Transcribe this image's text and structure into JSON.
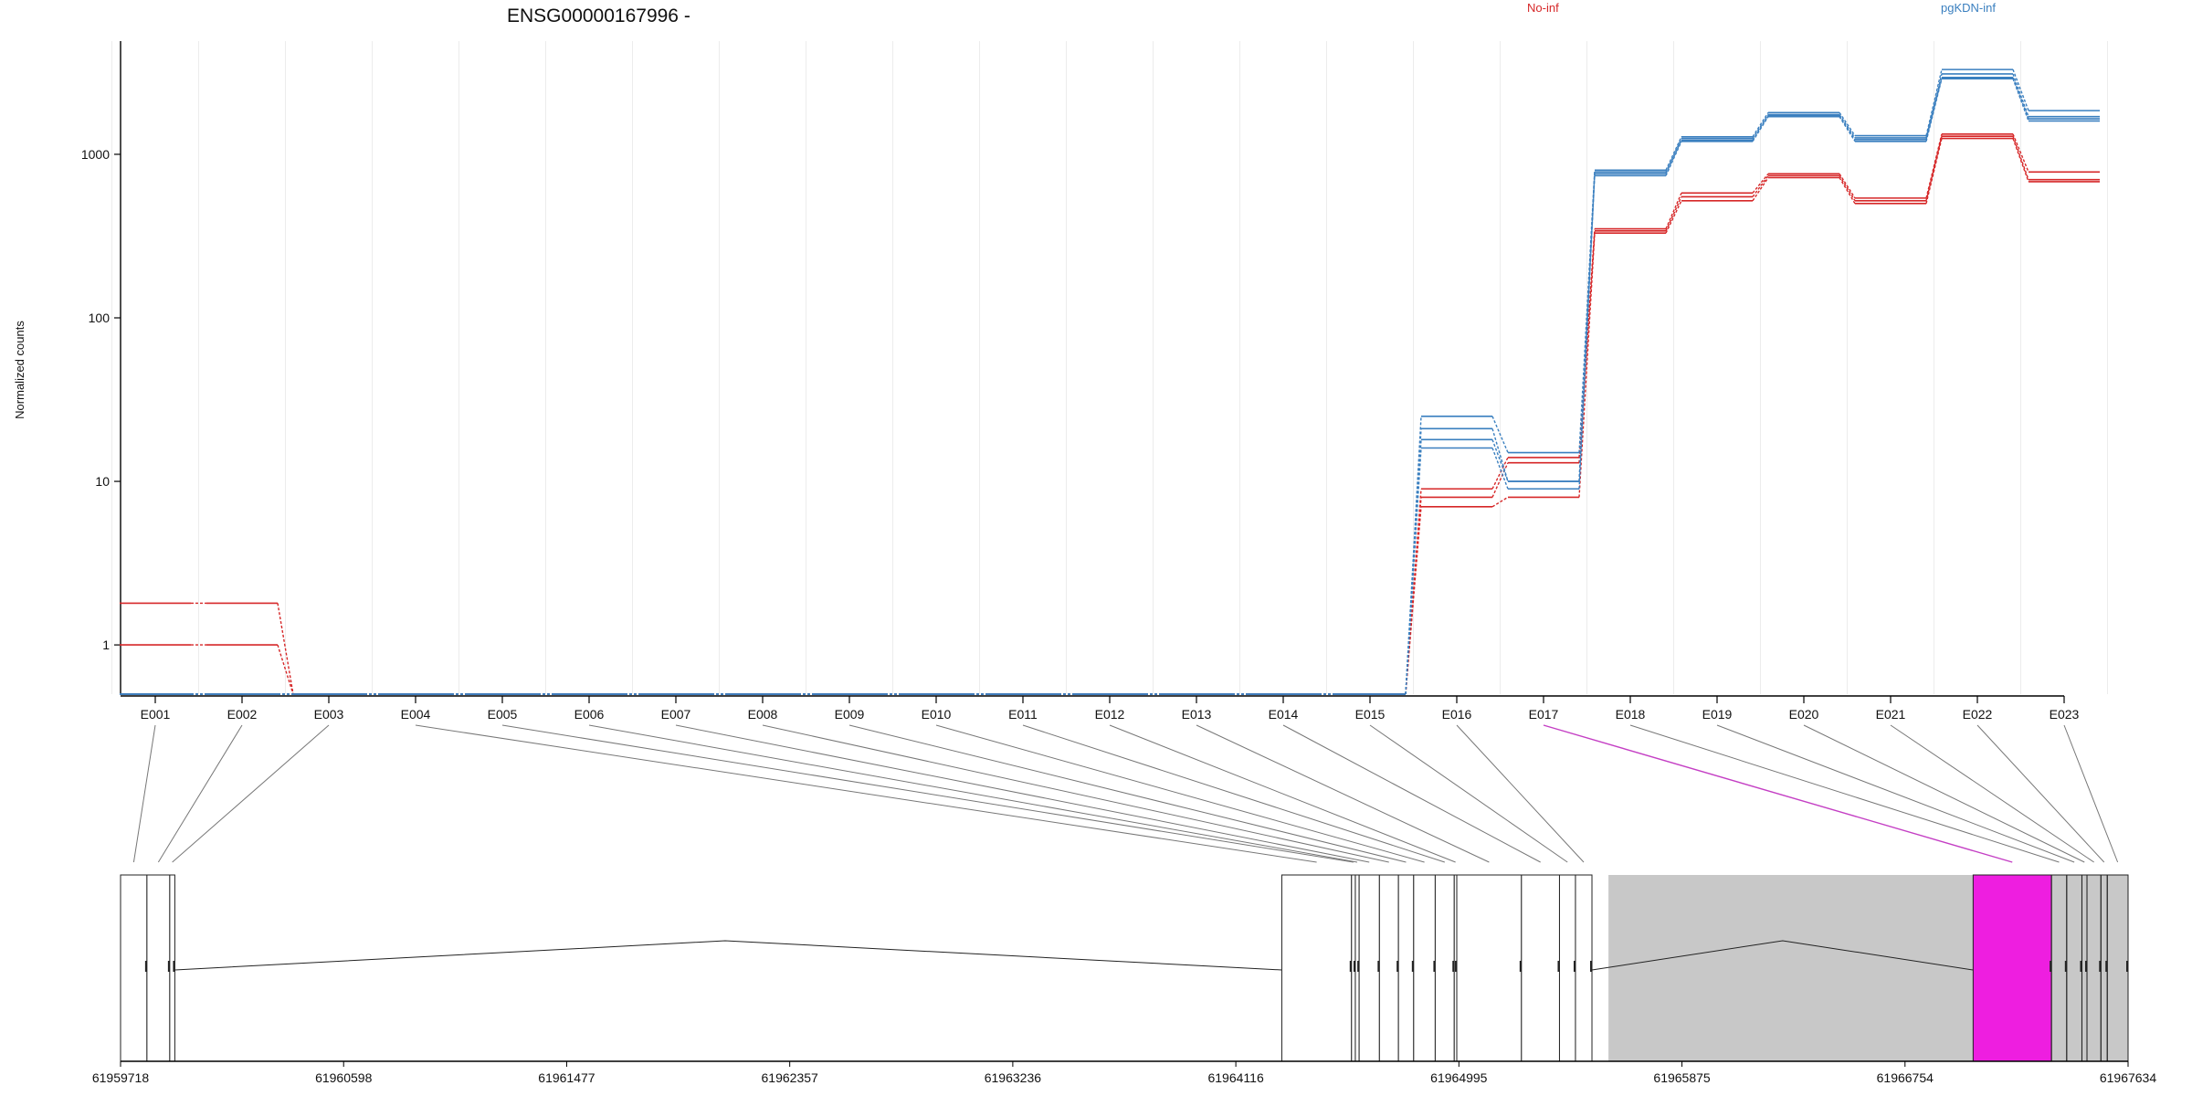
{
  "title": "ENSG00000167996 -",
  "ylabel": "Normalized counts",
  "legend": [
    {
      "name": "No-inf",
      "color": "#d62728"
    },
    {
      "name": "pgKDN-inf",
      "color": "#3a7fbf"
    }
  ],
  "colors": {
    "no_inf": "#d62728",
    "pgkdn_inf": "#3a7fbf",
    "highlight": "#ee1ee0",
    "exon_gray": "#c8c8c8",
    "axis": "#000000",
    "grid": "#ececec"
  },
  "chart_data": {
    "type": "line",
    "scale": "log",
    "yticks": [
      {
        "label": "1",
        "value": 1
      },
      {
        "label": "10",
        "value": 10
      },
      {
        "label": "100",
        "value": 100
      },
      {
        "label": "1000",
        "value": 1000
      }
    ],
    "ylim": [
      0.5,
      4500
    ],
    "categories": [
      "E001",
      "E002",
      "E003",
      "E004",
      "E005",
      "E006",
      "E007",
      "E008",
      "E009",
      "E010",
      "E011",
      "E012",
      "E013",
      "E014",
      "E015",
      "E016",
      "E017",
      "E018",
      "E019",
      "E020",
      "E021",
      "E022",
      "E023"
    ],
    "series": [
      {
        "group": "No-inf",
        "values": [
          1.8,
          1.8,
          0.5,
          0.5,
          0.5,
          0.5,
          0.5,
          0.5,
          0.5,
          0.5,
          0.5,
          0.5,
          0.5,
          0.5,
          0.5,
          9,
          14,
          350,
          580,
          760,
          540,
          1330,
          780
        ]
      },
      {
        "group": "No-inf",
        "values": [
          1.0,
          1.0,
          0.5,
          0.5,
          0.5,
          0.5,
          0.5,
          0.5,
          0.5,
          0.5,
          0.5,
          0.5,
          0.5,
          0.5,
          0.5,
          8,
          13,
          340,
          550,
          740,
          520,
          1290,
          700
        ]
      },
      {
        "group": "No-inf",
        "values": [
          0.5,
          0.5,
          0.5,
          0.5,
          0.5,
          0.5,
          0.5,
          0.5,
          0.5,
          0.5,
          0.5,
          0.5,
          0.5,
          0.5,
          0.5,
          7,
          8,
          330,
          520,
          720,
          500,
          1250,
          680
        ]
      },
      {
        "group": "pgKDN-inf",
        "values": [
          0.5,
          0.5,
          0.5,
          0.5,
          0.5,
          0.5,
          0.5,
          0.5,
          0.5,
          0.5,
          0.5,
          0.5,
          0.5,
          0.5,
          0.5,
          25,
          15,
          800,
          1280,
          1800,
          1300,
          3300,
          1850
        ]
      },
      {
        "group": "pgKDN-inf",
        "values": [
          0.5,
          0.5,
          0.5,
          0.5,
          0.5,
          0.5,
          0.5,
          0.5,
          0.5,
          0.5,
          0.5,
          0.5,
          0.5,
          0.5,
          0.5,
          21,
          10,
          780,
          1250,
          1750,
          1260,
          3100,
          1700
        ]
      },
      {
        "group": "pgKDN-inf",
        "values": [
          0.5,
          0.5,
          0.5,
          0.5,
          0.5,
          0.5,
          0.5,
          0.5,
          0.5,
          0.5,
          0.5,
          0.5,
          0.5,
          0.5,
          0.5,
          18,
          10,
          760,
          1220,
          1720,
          1230,
          2950,
          1650
        ]
      },
      {
        "group": "pgKDN-inf",
        "values": [
          0.5,
          0.5,
          0.5,
          0.5,
          0.5,
          0.5,
          0.5,
          0.5,
          0.5,
          0.5,
          0.5,
          0.5,
          0.5,
          0.5,
          0.5,
          16,
          9,
          740,
          1200,
          1700,
          1200,
          2900,
          1600
        ]
      }
    ]
  },
  "gene_model": {
    "coord_ticks": [
      "61959718",
      "61960598",
      "61961477",
      "61962357",
      "61963236",
      "61964116",
      "61964995",
      "61965875",
      "61966754",
      "61967634"
    ],
    "range": [
      61959718,
      61967634
    ],
    "highlight_exon": "E017",
    "gray_region": [
      61965585,
      61967634
    ],
    "exons": [
      [
        61959718,
        61959822
      ],
      [
        61959822,
        61959912
      ],
      [
        61959912,
        61959932
      ],
      [
        61964297,
        61964572
      ],
      [
        61964572,
        61964587
      ],
      [
        61964587,
        61964602
      ],
      [
        61964602,
        61964682
      ],
      [
        61964682,
        61964757
      ],
      [
        61964757,
        61964817
      ],
      [
        61964817,
        61964902
      ],
      [
        61964902,
        61964977
      ],
      [
        61964977,
        61964987
      ],
      [
        61964987,
        61965242
      ],
      [
        61965242,
        61965392
      ],
      [
        61965392,
        61965455
      ],
      [
        61965455,
        61965520
      ],
      [
        61967023,
        61967332
      ],
      [
        61967332,
        61967392
      ],
      [
        61967392,
        61967452
      ],
      [
        61967452,
        61967472
      ],
      [
        61967472,
        61967527
      ],
      [
        61967527,
        61967552
      ],
      [
        61967552,
        61967634
      ]
    ],
    "intron_peaks": [
      [
        61959932,
        61964297,
        61962102
      ],
      [
        61965520,
        61967023,
        61966272
      ]
    ]
  }
}
